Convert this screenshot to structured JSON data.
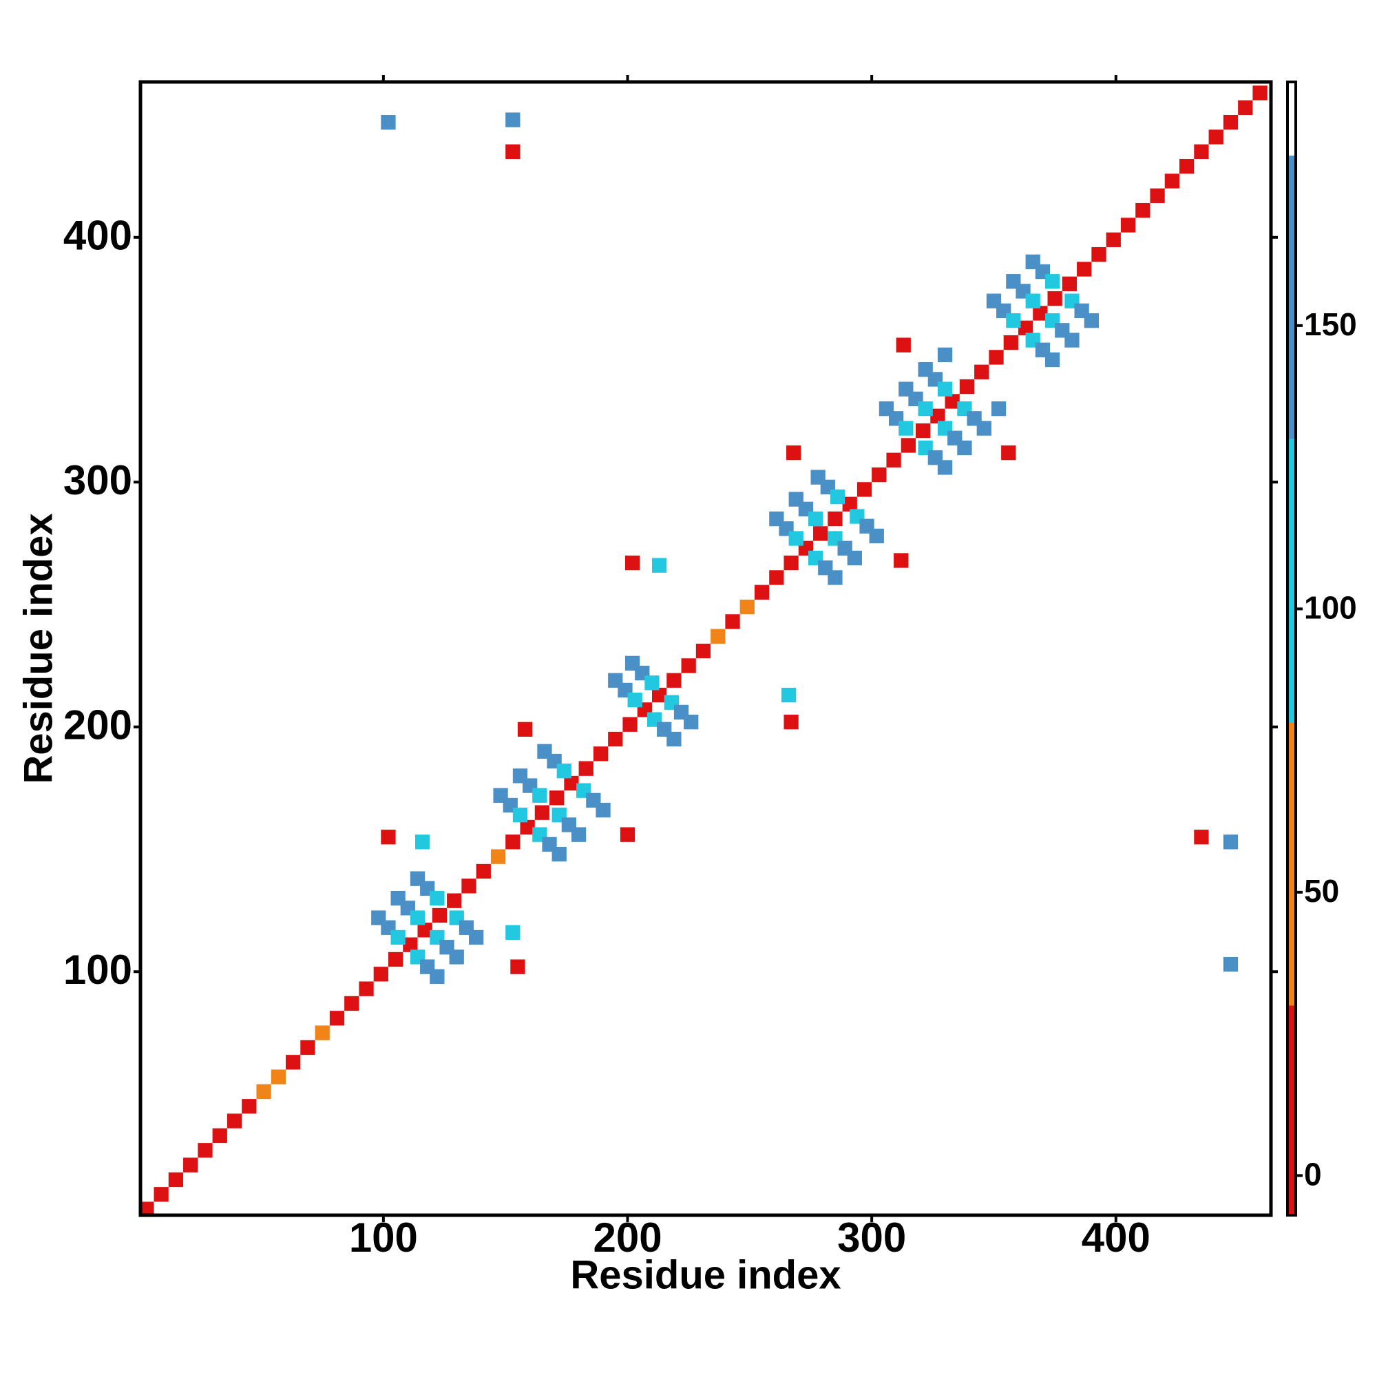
{
  "chart_data": {
    "type": "contact_map",
    "xlabel": "Residue index",
    "ylabel": "Residue index",
    "xlim": [
      0.5,
      463.5
    ],
    "ylim": [
      0.5,
      463.5
    ],
    "xticks": [
      100,
      200,
      300,
      400
    ],
    "yticks": [
      100,
      200,
      300,
      400
    ],
    "clim": [
      -7,
      193
    ],
    "cticks": [
      0,
      50,
      100,
      150
    ],
    "color_bins": [
      -7,
      30,
      80,
      130,
      180,
      193
    ],
    "bin_colors": [
      "#dd1111",
      "#f08418",
      "#22c8e0",
      "#4a8fc6",
      "#ffffff"
    ],
    "x": [
      3,
      9,
      15,
      21,
      27,
      33,
      39,
      45,
      51,
      57,
      63,
      69,
      75,
      81,
      87,
      93,
      99,
      105,
      111,
      117,
      123,
      129,
      135,
      141,
      147,
      153,
      159,
      165,
      171,
      177,
      183,
      189,
      195,
      201,
      207,
      213,
      219,
      225,
      231,
      237,
      243,
      249,
      255,
      261,
      267,
      273,
      279,
      285,
      291,
      297,
      303,
      309,
      315,
      321,
      327,
      333,
      339,
      345,
      351,
      357,
      363,
      369,
      375,
      381,
      387,
      393,
      399,
      405,
      411,
      417,
      423,
      429,
      435,
      441,
      447,
      453,
      459,
      98,
      102,
      106,
      114,
      118,
      122,
      106,
      110,
      114,
      122,
      126,
      130,
      114,
      118,
      122,
      130,
      134,
      138,
      148,
      152,
      156,
      164,
      168,
      172,
      156,
      160,
      164,
      172,
      176,
      180,
      166,
      170,
      174,
      182,
      186,
      190,
      195,
      199,
      203,
      211,
      215,
      219,
      202,
      206,
      210,
      218,
      222,
      226,
      261,
      265,
      269,
      277,
      281,
      285,
      269,
      273,
      277,
      285,
      289,
      293,
      278,
      282,
      286,
      294,
      298,
      302,
      306,
      310,
      314,
      322,
      326,
      330,
      314,
      318,
      322,
      330,
      334,
      338,
      322,
      326,
      330,
      338,
      342,
      346,
      350,
      354,
      358,
      366,
      370,
      374,
      358,
      362,
      366,
      374,
      378,
      382,
      366,
      370,
      374,
      382,
      386,
      390,
      155,
      102,
      153,
      116,
      158,
      200,
      202,
      267,
      213,
      266,
      268,
      312,
      313,
      356,
      352,
      330,
      102,
      447,
      153,
      447,
      153,
      435
    ],
    "y": [
      3,
      9,
      15,
      21,
      27,
      33,
      39,
      45,
      51,
      57,
      63,
      69,
      75,
      81,
      87,
      93,
      99,
      105,
      111,
      117,
      123,
      129,
      135,
      141,
      147,
      153,
      159,
      165,
      171,
      177,
      183,
      189,
      195,
      201,
      207,
      213,
      219,
      225,
      231,
      237,
      243,
      249,
      255,
      261,
      267,
      273,
      279,
      285,
      291,
      297,
      303,
      309,
      315,
      321,
      327,
      333,
      339,
      345,
      351,
      357,
      363,
      369,
      375,
      381,
      387,
      393,
      399,
      405,
      411,
      417,
      423,
      429,
      435,
      441,
      447,
      453,
      459,
      122,
      118,
      114,
      106,
      102,
      98,
      130,
      126,
      122,
      114,
      110,
      106,
      138,
      134,
      130,
      122,
      118,
      114,
      172,
      168,
      164,
      156,
      152,
      148,
      180,
      176,
      172,
      164,
      160,
      156,
      190,
      186,
      182,
      174,
      170,
      166,
      219,
      215,
      211,
      203,
      199,
      195,
      226,
      222,
      218,
      210,
      206,
      202,
      285,
      281,
      277,
      269,
      265,
      261,
      293,
      289,
      285,
      277,
      273,
      269,
      302,
      298,
      294,
      286,
      282,
      278,
      330,
      326,
      322,
      314,
      310,
      306,
      338,
      334,
      330,
      322,
      318,
      314,
      346,
      342,
      338,
      330,
      326,
      322,
      374,
      370,
      366,
      358,
      354,
      350,
      382,
      378,
      374,
      366,
      362,
      358,
      390,
      386,
      382,
      374,
      370,
      366,
      102,
      155,
      116,
      153,
      199,
      156,
      267,
      202,
      266,
      213,
      312,
      268,
      356,
      312,
      330,
      352,
      447,
      103,
      448,
      153,
      435,
      155
    ],
    "values": [
      10,
      10,
      10,
      10,
      10,
      10,
      10,
      10,
      60,
      60,
      10,
      10,
      60,
      10,
      10,
      10,
      10,
      10,
      10,
      10,
      10,
      10,
      10,
      10,
      60,
      10,
      10,
      10,
      10,
      10,
      10,
      10,
      10,
      10,
      10,
      10,
      10,
      10,
      10,
      60,
      10,
      60,
      10,
      10,
      10,
      10,
      10,
      10,
      10,
      10,
      10,
      10,
      10,
      10,
      10,
      10,
      10,
      10,
      10,
      10,
      10,
      10,
      10,
      10,
      10,
      10,
      10,
      10,
      10,
      10,
      10,
      10,
      10,
      10,
      10,
      10,
      10,
      140,
      140,
      110,
      110,
      140,
      140,
      140,
      140,
      110,
      110,
      140,
      140,
      140,
      140,
      110,
      110,
      140,
      140,
      140,
      140,
      110,
      110,
      140,
      140,
      140,
      140,
      110,
      110,
      140,
      140,
      140,
      140,
      110,
      110,
      140,
      140,
      140,
      140,
      110,
      110,
      140,
      140,
      140,
      140,
      110,
      110,
      140,
      140,
      140,
      140,
      110,
      110,
      140,
      140,
      140,
      140,
      110,
      110,
      140,
      140,
      140,
      140,
      110,
      110,
      140,
      140,
      140,
      140,
      110,
      110,
      140,
      140,
      140,
      140,
      110,
      110,
      140,
      140,
      140,
      140,
      110,
      110,
      140,
      140,
      140,
      140,
      110,
      110,
      140,
      140,
      140,
      140,
      110,
      110,
      140,
      140,
      140,
      140,
      110,
      110,
      140,
      140,
      5,
      5,
      110,
      110,
      5,
      5,
      5,
      5,
      110,
      110,
      5,
      5,
      5,
      5,
      140,
      140,
      145,
      145,
      145,
      145,
      5,
      5
    ]
  }
}
